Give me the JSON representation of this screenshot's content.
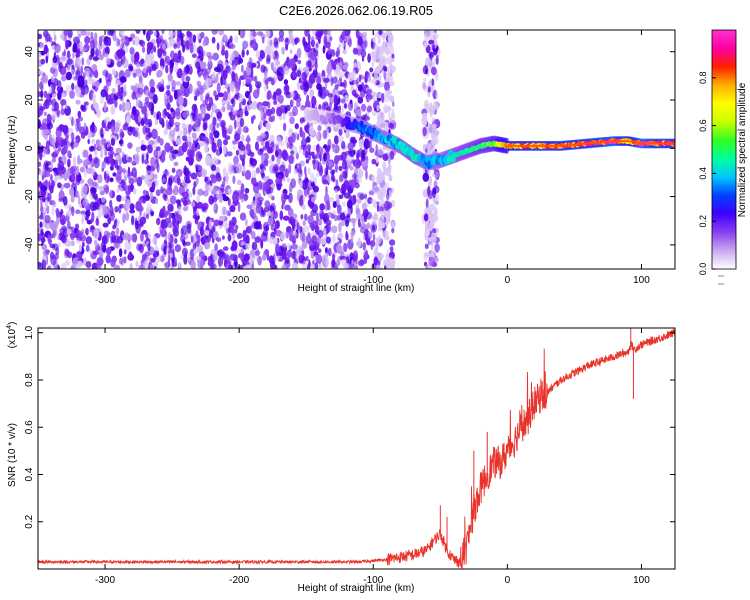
{
  "figure_title": "C2E6.2026.062.06.19.R05",
  "chart_data": [
    {
      "type": "heatmap",
      "id": "spectrogram",
      "title": "C2E6.2026.062.06.19.R05",
      "xlabel": "Height of straight line (km)",
      "ylabel": "Frequency (Hz)",
      "xlim": [
        -350,
        125
      ],
      "ylim": [
        -50,
        49
      ],
      "xticks": [
        -300,
        -200,
        -100,
        0,
        100
      ],
      "xtick_labels": [
        "-300",
        "-200",
        "-100",
        "0",
        "100"
      ],
      "yticks": [
        -40,
        -20,
        0,
        20,
        40
      ],
      "ytick_labels": [
        "-40",
        "-20",
        "0",
        "20",
        "40"
      ],
      "noise_region_km": [
        -350,
        -85
      ],
      "gap_region_km": [
        -85,
        -62
      ],
      "secondary_noise_km": [
        -62,
        -52
      ],
      "signal_track": {
        "x": [
          -150,
          -130,
          -110,
          -95,
          -80,
          -70,
          -60,
          -50,
          -40,
          -30,
          -20,
          -10,
          0,
          20,
          40,
          60,
          80,
          90,
          100,
          110,
          125
        ],
        "y": [
          14,
          12,
          9,
          5,
          1,
          -3,
          -6,
          -5,
          -3,
          -1,
          1,
          2,
          1,
          1,
          1,
          2,
          3,
          3,
          2,
          2,
          2
        ],
        "amplitude": [
          0.05,
          0.12,
          0.3,
          0.35,
          0.4,
          0.45,
          0.35,
          0.38,
          0.42,
          0.45,
          0.5,
          0.55,
          0.75,
          0.8,
          0.82,
          0.85,
          0.92,
          0.7,
          0.95,
          0.85,
          0.85
        ]
      },
      "colorbar": {
        "label": "Normalized spectral amplitude",
        "range": [
          0,
          1
        ],
        "ticks": [
          0.0,
          0.2,
          0.4,
          0.6,
          0.8
        ],
        "tick_labels": [
          "0.0",
          "0.2",
          "0.4",
          "0.6",
          "0.8"
        ],
        "colors": [
          "#ffffff",
          "#c8a8f0",
          "#8a3ff0",
          "#3f00ff",
          "#0040ff",
          "#00c8ff",
          "#00ff9a",
          "#30ff20",
          "#c8ff00",
          "#ffff00",
          "#ffb000",
          "#ff2000",
          "#ff00a0",
          "#ff30d0"
        ]
      }
    },
    {
      "type": "line",
      "id": "snr",
      "xlabel": "Height of straight line (km)",
      "ylabel": "SNR (10 * v/v)",
      "y_multiplier_label": "(x10",
      "y_multiplier_exp": "4",
      "y_multiplier_close": ")",
      "xlim": [
        -350,
        125
      ],
      "ylim": [
        0,
        1.02
      ],
      "xticks": [
        -300,
        -200,
        -100,
        0,
        100
      ],
      "xtick_labels": [
        "-300",
        "-200",
        "-100",
        "0",
        "100"
      ],
      "yticks": [
        0.2,
        0.4,
        0.6,
        0.8,
        1.0
      ],
      "ytick_labels": [
        "0.2",
        "0.4",
        "0.6",
        "0.8",
        "1.0"
      ],
      "line_color": "#e8332a",
      "series": [
        {
          "name": "SNR",
          "x": [
            -350,
            -300,
            -250,
            -200,
            -150,
            -110,
            -90,
            -80,
            -70,
            -60,
            -55,
            -50,
            -45,
            -40,
            -35,
            -30,
            -25,
            -20,
            -15,
            -10,
            -5,
            0,
            5,
            10,
            15,
            20,
            25,
            30,
            40,
            50,
            60,
            70,
            80,
            90,
            92,
            95,
            100,
            110,
            120,
            125
          ],
          "y": [
            0.03,
            0.03,
            0.03,
            0.03,
            0.03,
            0.03,
            0.04,
            0.05,
            0.06,
            0.08,
            0.12,
            0.15,
            0.08,
            0.04,
            0.03,
            0.1,
            0.25,
            0.34,
            0.4,
            0.45,
            0.45,
            0.5,
            0.54,
            0.6,
            0.63,
            0.7,
            0.73,
            0.75,
            0.8,
            0.83,
            0.86,
            0.88,
            0.9,
            0.92,
            0.95,
            0.93,
            0.95,
            0.97,
            0.99,
            1.0
          ]
        }
      ],
      "spikes": [
        {
          "x": -50,
          "y": 0.27
        },
        {
          "x": -45,
          "y": 0.22
        },
        {
          "x": -25,
          "y": 0.5
        },
        {
          "x": -15,
          "y": 0.58
        },
        {
          "x": 92,
          "y": 1.02
        },
        {
          "x": 94,
          "y": 0.72
        }
      ]
    }
  ]
}
